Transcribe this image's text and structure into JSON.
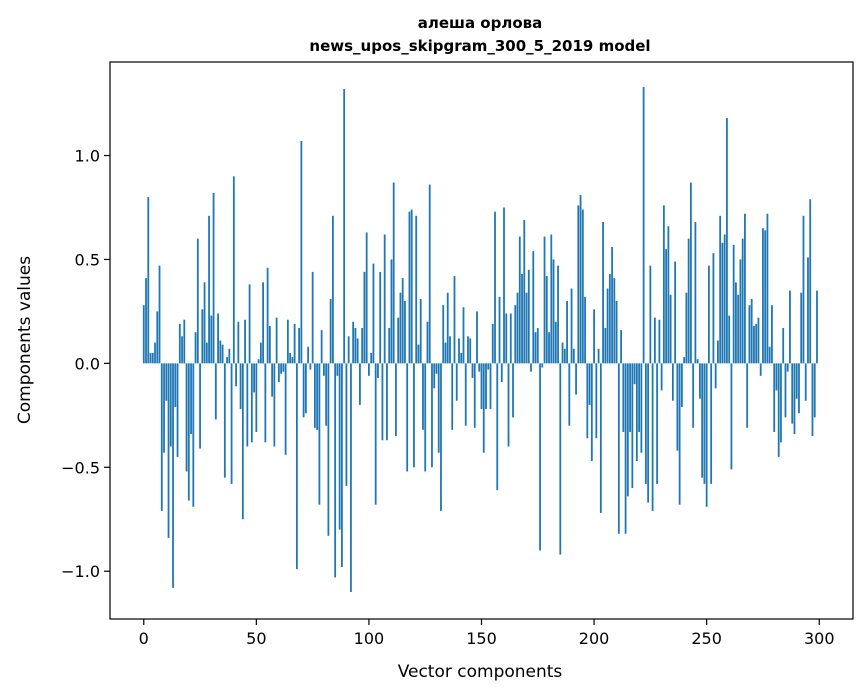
{
  "chart_data": {
    "type": "bar",
    "title": "алеша орлова",
    "subtitle": "news_upos_skipgram_300_5_2019 model",
    "xlabel": "Vector components",
    "ylabel": "Components values",
    "xlim": [
      -15,
      315
    ],
    "ylim": [
      -1.23,
      1.45
    ],
    "xticks": [
      0,
      50,
      100,
      150,
      200,
      250,
      300
    ],
    "xtick_labels": [
      "0",
      "50",
      "100",
      "150",
      "200",
      "250",
      "300"
    ],
    "yticks": [
      -1.0,
      -0.5,
      0.0,
      0.5,
      1.0
    ],
    "ytick_labels": [
      "−1.0",
      "−0.5",
      "0.0",
      "0.5",
      "1.0"
    ],
    "bar_color": "#1f77b4",
    "grid": false,
    "legend": "none",
    "values": [
      0.28,
      0.41,
      0.8,
      0.05,
      0.05,
      0.1,
      0.25,
      0.47,
      -0.71,
      -0.43,
      -0.18,
      -0.84,
      -0.4,
      -1.08,
      -0.21,
      -0.45,
      0.19,
      0.13,
      0.21,
      -0.52,
      -0.66,
      -0.34,
      -0.69,
      0.15,
      0.6,
      -0.41,
      0.26,
      0.39,
      0.1,
      0.71,
      0.23,
      0.82,
      -0.27,
      0.24,
      0.11,
      0.09,
      -0.55,
      0.03,
      0.07,
      -0.58,
      0.9,
      -0.11,
      0.2,
      -0.22,
      -0.75,
      0.21,
      -0.4,
      0.38,
      -0.38,
      -0.14,
      -0.33,
      0.02,
      0.1,
      0.39,
      -0.38,
      0.46,
      0.18,
      -0.16,
      -0.4,
      0.22,
      -0.09,
      -0.05,
      -0.04,
      -0.44,
      0.21,
      0.05,
      0.03,
      0.19,
      -0.99,
      0.17,
      1.07,
      -0.26,
      -0.24,
      0.08,
      -0.03,
      0.44,
      -0.31,
      -0.32,
      -0.68,
      0.16,
      -0.06,
      -0.3,
      -0.83,
      0.31,
      0.71,
      -1.03,
      -0.06,
      -0.8,
      -0.98,
      1.32,
      -0.59,
      0.13,
      -1.1,
      0.2,
      0.17,
      0.12,
      -0.2,
      0.17,
      0.44,
      0.63,
      -0.06,
      0.05,
      0.48,
      -0.68,
      -0.07,
      0.44,
      -0.37,
      0.62,
      -0.37,
      0.17,
      0.5,
      0.87,
      -0.35,
      0.22,
      0.34,
      0.41,
      0.3,
      -0.52,
      0.73,
      0.74,
      -0.5,
      0.71,
      0.09,
      0.31,
      -0.32,
      -0.52,
      0.2,
      0.86,
      -0.5,
      -0.12,
      -0.05,
      -0.43,
      -0.71,
      0.28,
      0.1,
      0.34,
      0.13,
      -0.32,
      0.42,
      -0.18,
      0.12,
      0.05,
      0.27,
      -0.3,
      0.13,
      0.12,
      -0.07,
      -0.31,
      0.25,
      -0.04,
      -0.22,
      -0.43,
      -0.22,
      -0.03,
      -0.22,
      0.19,
      0.73,
      -0.61,
      0.32,
      -0.09,
      0.75,
      0.24,
      -0.4,
      0.24,
      -0.26,
      0.28,
      0.34,
      0.61,
      0.43,
      0.69,
      0.34,
      0.45,
      -0.04,
      0.54,
      0.15,
      0.17,
      -0.9,
      -0.02,
      0.61,
      0.42,
      0.15,
      0.62,
      0.5,
      0.2,
      0.47,
      -0.92,
      0.1,
      0.07,
      0.3,
      -0.3,
      0.36,
      0.07,
      -0.15,
      0.76,
      0.81,
      0.74,
      0.32,
      -0.36,
      -0.2,
      -0.47,
      0.26,
      -0.36,
      0.07,
      -0.72,
      0.68,
      0.17,
      0.36,
      0.43,
      0.56,
      0.41,
      0.3,
      -0.82,
      0.16,
      -0.33,
      -0.82,
      -0.64,
      -0.33,
      -0.6,
      -0.1,
      -0.47,
      -0.33,
      -0.43,
      1.33,
      -0.58,
      -0.67,
      0.47,
      -0.71,
      0.22,
      -0.58,
      0.21,
      -0.13,
      0.76,
      0.55,
      0.66,
      0.33,
      -0.18,
      0.49,
      -0.42,
      -0.68,
      -0.21,
      0.03,
      0.34,
      0.6,
      0.87,
      -0.31,
      0.68,
      0.02,
      -0.17,
      -0.55,
      -0.58,
      -0.69,
      0.47,
      -0.58,
      0.53,
      -0.12,
      0.11,
      0.71,
      0.58,
      0.62,
      1.18,
      0.23,
      -0.51,
      0.57,
      0.39,
      0.33,
      0.5,
      0.6,
      0.72,
      -0.31,
      0.28,
      0.31,
      0.18,
      0.19,
      0.22,
      -0.06,
      0.65,
      0.64,
      0.72,
      0.08,
      0.28,
      -0.33,
      -0.13,
      -0.45,
      -0.38,
      0.17,
      -0.26,
      -0.04,
      0.35,
      -0.29,
      -0.34,
      -0.17,
      -0.24,
      0.34,
      0.71,
      -0.18,
      0.51,
      0.79,
      -0.35,
      -0.26,
      0.35
    ]
  }
}
